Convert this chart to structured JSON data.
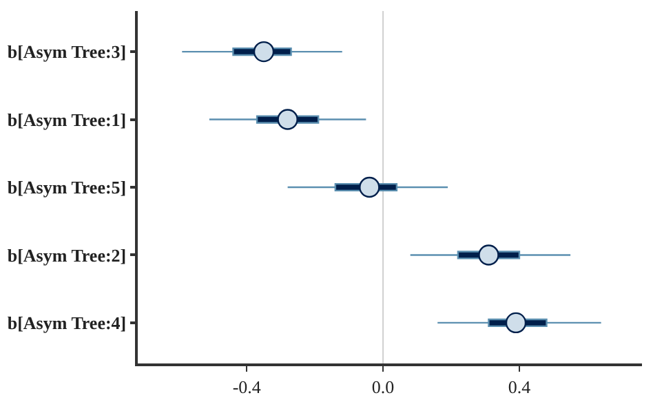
{
  "chart_data": {
    "type": "box",
    "orientation": "horizontal",
    "categories": [
      "b[Asym Tree:3]",
      "b[Asym Tree:1]",
      "b[Asym Tree:5]",
      "b[Asym Tree:2]",
      "b[Asym Tree:4]"
    ],
    "boxes": [
      {
        "low": -0.59,
        "q1": -0.44,
        "median": -0.35,
        "q3": -0.27,
        "high": -0.12
      },
      {
        "low": -0.51,
        "q1": -0.37,
        "median": -0.28,
        "q3": -0.19,
        "high": -0.05
      },
      {
        "low": -0.28,
        "q1": -0.14,
        "median": -0.04,
        "q3": 0.04,
        "high": 0.19
      },
      {
        "low": 0.08,
        "q1": 0.22,
        "median": 0.31,
        "q3": 0.4,
        "high": 0.55
      },
      {
        "low": 0.16,
        "q1": 0.31,
        "median": 0.39,
        "q3": 0.48,
        "high": 0.64
      }
    ],
    "color": "#011f4b",
    "series": [
      {
        "type": "scatter",
        "color": "#cfdeea",
        "marker": "circle",
        "values": [
          -0.35,
          -0.28,
          -0.04,
          0.31,
          0.39
        ]
      }
    ],
    "xlim": [
      -0.72,
      0.76
    ],
    "xticks": [
      {
        "value": -0.4,
        "label": "-0.4"
      },
      {
        "value": 0,
        "label": "0.0"
      },
      {
        "value": 0.4,
        "label": "0.4"
      }
    ],
    "ref_lines": [
      {
        "axis": "x",
        "value": 0,
        "color": "#d0d0d0"
      }
    ],
    "grid": false
  }
}
